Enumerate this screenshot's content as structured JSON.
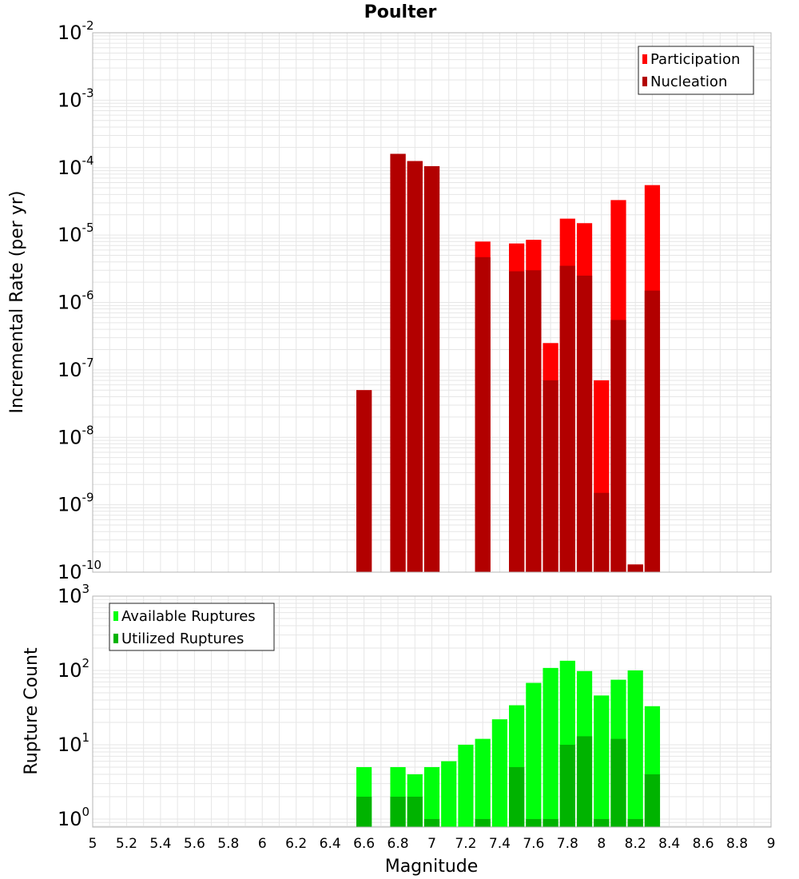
{
  "chart_data": [
    {
      "type": "bar",
      "title": "Poulter",
      "xlabel": "",
      "ylabel": "Incremental Rate (per yr)",
      "yscale": "log",
      "ylim": [
        1e-10,
        0.01
      ],
      "xlim": [
        5,
        9
      ],
      "grid": true,
      "legend_position": "top-right",
      "x": [
        6.6,
        6.8,
        6.9,
        7.0,
        7.3,
        7.5,
        7.6,
        7.7,
        7.8,
        7.9,
        8.0,
        8.1,
        8.2,
        8.3
      ],
      "series": [
        {
          "name": "Participation",
          "color": "#ff0000",
          "values": [
            5e-08,
            0.00016,
            0.000125,
            0.000105,
            8e-06,
            7.5e-06,
            8.5e-06,
            2.5e-07,
            1.75e-05,
            1.5e-05,
            7e-08,
            3.3e-05,
            1.3e-10,
            5.5e-05
          ]
        },
        {
          "name": "Nucleation",
          "color": "#b20000",
          "values": [
            5e-08,
            0.00016,
            0.000125,
            0.000105,
            4.7e-06,
            2.9e-06,
            3e-06,
            7e-08,
            3.5e-06,
            2.5e-06,
            1.5e-09,
            5.5e-07,
            1.3e-10,
            1.5e-06
          ]
        }
      ],
      "legend": [
        {
          "label": "Participation",
          "color": "#ff0000"
        },
        {
          "label": "Nucleation",
          "color": "#b20000"
        }
      ],
      "y_ticks": [
        {
          "base": "10",
          "exp": "-2",
          "value": 0.01
        },
        {
          "base": "10",
          "exp": "-3",
          "value": 0.001
        },
        {
          "base": "10",
          "exp": "-4",
          "value": 0.0001
        },
        {
          "base": "10",
          "exp": "-5",
          "value": 1e-05
        },
        {
          "base": "10",
          "exp": "-6",
          "value": 1e-06
        },
        {
          "base": "10",
          "exp": "-7",
          "value": 1e-07
        },
        {
          "base": "10",
          "exp": "-8",
          "value": 1e-08
        },
        {
          "base": "10",
          "exp": "-9",
          "value": 1e-09
        },
        {
          "base": "10",
          "exp": "-10",
          "value": 1e-10
        }
      ]
    },
    {
      "type": "bar",
      "title": "",
      "xlabel": "Magnitude",
      "ylabel": "Rupture Count",
      "yscale": "log",
      "ylim": [
        0.78,
        1000
      ],
      "xlim": [
        5,
        9
      ],
      "grid": true,
      "legend_position": "top-left",
      "x": [
        6.6,
        6.8,
        6.9,
        7.0,
        7.1,
        7.2,
        7.3,
        7.4,
        7.5,
        7.6,
        7.7,
        7.8,
        7.9,
        8.0,
        8.1,
        8.2,
        8.3
      ],
      "series": [
        {
          "name": "Available Ruptures",
          "color": "#00ff0c",
          "values": [
            5,
            5,
            4,
            5,
            6,
            10,
            12,
            22,
            34,
            68,
            108,
            135,
            98,
            46,
            75,
            100,
            33
          ]
        },
        {
          "name": "Utilized Ruptures",
          "color": "#00b300",
          "values": [
            2,
            2,
            2,
            1,
            0,
            0,
            1,
            0,
            5,
            1,
            1,
            10,
            13,
            1,
            12,
            1,
            4
          ]
        }
      ],
      "legend": [
        {
          "label": "Available Ruptures",
          "color": "#00ff0c"
        },
        {
          "label": "Utilized Ruptures",
          "color": "#00b300"
        }
      ],
      "y_ticks": [
        {
          "base": "10",
          "exp": "3",
          "value": 1000
        },
        {
          "base": "10",
          "exp": "2",
          "value": 100
        },
        {
          "base": "10",
          "exp": "1",
          "value": 10
        },
        {
          "base": "10",
          "exp": "0",
          "value": 1
        }
      ],
      "x_ticks": [
        "5",
        "5.2",
        "5.4",
        "5.6",
        "5.8",
        "6",
        "6.2",
        "6.4",
        "6.6",
        "6.8",
        "7",
        "7.2",
        "7.4",
        "7.6",
        "7.8",
        "8",
        "8.2",
        "8.4",
        "8.6",
        "8.8",
        "9"
      ]
    }
  ]
}
